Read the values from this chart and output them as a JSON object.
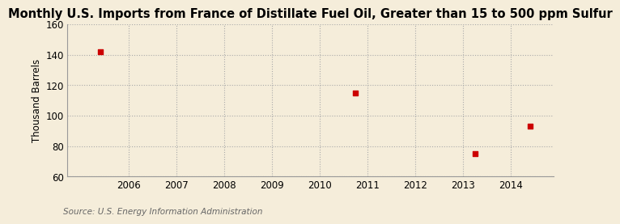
{
  "title": "Monthly U.S. Imports from France of Distillate Fuel Oil, Greater than 15 to 500 ppm Sulfur",
  "ylabel": "Thousand Barrels",
  "source": "Source: U.S. Energy Information Administration",
  "background_color": "#f5edda",
  "plot_bg_color": "#f5edda",
  "xlim": [
    2004.7,
    2014.9
  ],
  "ylim": [
    60,
    160
  ],
  "yticks": [
    60,
    80,
    100,
    120,
    140,
    160
  ],
  "xticks": [
    2006,
    2007,
    2008,
    2009,
    2010,
    2011,
    2012,
    2013,
    2014
  ],
  "data_x": [
    2005.4,
    2010.75,
    2013.25,
    2014.4
  ],
  "data_y": [
    142,
    115,
    75,
    93
  ],
  "marker_color": "#cc0000",
  "marker_size": 4,
  "grid_color": "#aaaaaa",
  "title_fontsize": 10.5,
  "label_fontsize": 8.5,
  "tick_fontsize": 8.5,
  "source_fontsize": 7.5
}
